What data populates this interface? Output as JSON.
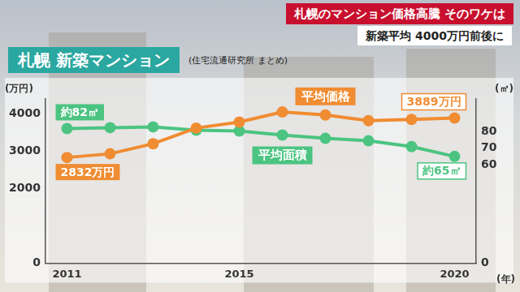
{
  "header": {
    "title": "札幌のマンション価格高騰 そのワケは",
    "subtitle": "新築平均 4000万円前後に"
  },
  "chart_data": {
    "type": "line",
    "title": "札幌 新築マンション",
    "subtitle": "(住宅流通研究所 まとめ)",
    "categories": [
      "2011",
      null,
      null,
      null,
      "2015",
      null,
      null,
      null,
      null,
      "2020"
    ],
    "xlabel": "(年)",
    "ylabel": "(万円)",
    "y2label": "(㎡)",
    "ylim": [
      0,
      4400
    ],
    "yticks": [
      0,
      2000,
      3000,
      4000
    ],
    "y2lim": [
      0,
      100
    ],
    "y2ticks": [
      0,
      60,
      70,
      80
    ],
    "grid": false,
    "marker": "circle",
    "line_style": "solid",
    "series": [
      {
        "name": "平均価格",
        "color": "#f08c32",
        "axis": "y",
        "values": [
          2832,
          2930,
          3200,
          3620,
          3780,
          4050,
          3970,
          3820,
          3850,
          3889
        ],
        "value_labels": [
          "2832万円",
          null,
          null,
          null,
          null,
          null,
          null,
          null,
          null,
          "3889万円"
        ]
      },
      {
        "name": "平均面積",
        "color": "#4cc481",
        "axis": "y2",
        "values": [
          82,
          82.5,
          83,
          81,
          80.5,
          78,
          76,
          74.5,
          71,
          65
        ],
        "value_labels": [
          "約82㎡",
          null,
          null,
          null,
          null,
          null,
          null,
          null,
          null,
          "約65㎡"
        ]
      }
    ]
  }
}
